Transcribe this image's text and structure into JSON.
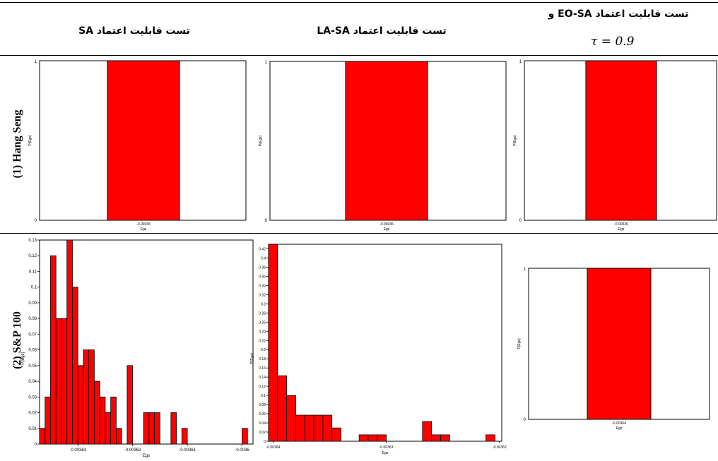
{
  "headers": {
    "col1": "تست قابلیت اعتماد SA",
    "col2": "تست قابلیت اعتماد LA-SA",
    "col3": "تست قابلیت اعتماد EO-SA و",
    "col3_tau": "τ = 0.9"
  },
  "rows": {
    "row1": "(1) Hang Seng",
    "row2": "(2) S&P 100"
  },
  "colors": {
    "bar": "#ff0000",
    "bar_edge": "#000000",
    "axis": "#000000"
  },
  "chart_data": [
    {
      "id": "hs-sa",
      "type": "bar",
      "categories": [
        "-0.00336"
      ],
      "values": [
        1
      ],
      "xlabel": "Egs",
      "ylabel": "P(Egs)",
      "ylim": [
        0,
        1
      ],
      "yticks": [
        "0",
        "1"
      ],
      "grid": false
    },
    {
      "id": "hs-lasa",
      "type": "bar",
      "categories": [
        "-0.00336"
      ],
      "values": [
        1
      ],
      "xlabel": "Egs",
      "ylabel": "P(Egs)",
      "ylim": [
        0,
        1
      ],
      "yticks": [
        "0",
        "1"
      ],
      "grid": false
    },
    {
      "id": "hs-eosa",
      "type": "bar",
      "categories": [
        "-0.00336"
      ],
      "values": [
        1
      ],
      "xlabel": "Egs",
      "ylabel": "P(Egs)",
      "ylim": [
        0,
        1
      ],
      "yticks": [
        "0",
        "1"
      ],
      "grid": false
    },
    {
      "id": "sp-sa",
      "type": "bar",
      "xlabel": "Egs",
      "ylabel": "P(Egs)",
      "xlim": [
        -0.003637,
        -0.003598
      ],
      "ylim": [
        0,
        0.13
      ],
      "bin_width": 1e-06,
      "xticks": [
        -0.00363,
        -0.00362,
        -0.00361,
        -0.0036
      ],
      "xticklabels": [
        "-0.00363",
        "-0.00362",
        "-0.00361",
        "-0.0036"
      ],
      "yticks": [
        "0",
        "0.01",
        "0.02",
        "0.03",
        "0.04",
        "0.05",
        "0.06",
        "0.07",
        "0.08",
        "0.09",
        "0.1",
        "0.11",
        "0.12",
        "0.13"
      ],
      "bins": [
        {
          "x": -0.0036365,
          "y": 0.01
        },
        {
          "x": -0.0036355,
          "y": 0.03
        },
        {
          "x": -0.0036345,
          "y": 0.12
        },
        {
          "x": -0.0036335,
          "y": 0.08
        },
        {
          "x": -0.0036325,
          "y": 0.08
        },
        {
          "x": -0.0036315,
          "y": 0.13
        },
        {
          "x": -0.0036305,
          "y": 0.1
        },
        {
          "x": -0.0036295,
          "y": 0.05
        },
        {
          "x": -0.0036285,
          "y": 0.06
        },
        {
          "x": -0.0036275,
          "y": 0.06
        },
        {
          "x": -0.0036265,
          "y": 0.04
        },
        {
          "x": -0.0036255,
          "y": 0.03
        },
        {
          "x": -0.0036245,
          "y": 0.02
        },
        {
          "x": -0.0036235,
          "y": 0.03
        },
        {
          "x": -0.0036225,
          "y": 0.01
        },
        {
          "x": -0.0036205,
          "y": 0.05
        },
        {
          "x": -0.0036175,
          "y": 0.02
        },
        {
          "x": -0.0036165,
          "y": 0.02
        },
        {
          "x": -0.0036155,
          "y": 0.02
        },
        {
          "x": -0.0036125,
          "y": 0.02
        },
        {
          "x": -0.0036105,
          "y": 0.01
        },
        {
          "x": -0.0035995,
          "y": 0.01
        }
      ]
    },
    {
      "id": "sp-lasa",
      "type": "bar",
      "xlabel": "Egs",
      "ylabel": "P(Egs)",
      "xlim": [
        -0.0036404,
        -0.0036198
      ],
      "ylim": [
        0,
        0.43
      ],
      "bin_width": 8e-07,
      "xticks": [
        -0.00364,
        -0.00363,
        -0.00362
      ],
      "xticklabels": [
        "-0.00364",
        "-0.00363",
        "-0.00362"
      ],
      "yticks": [
        "0",
        "0.02",
        "0.04",
        "0.06",
        "0.08",
        "0.1",
        "0.12",
        "0.14",
        "0.16",
        "0.18",
        "0.2",
        "0.22",
        "0.24",
        "0.26",
        "0.28",
        "0.3",
        "0.32",
        "0.34",
        "0.36",
        "0.38",
        "0.4",
        "0.42"
      ],
      "bins": [
        {
          "x": -0.00364,
          "y": 0.43
        },
        {
          "x": -0.0036392,
          "y": 0.143
        },
        {
          "x": -0.0036384,
          "y": 0.1
        },
        {
          "x": -0.0036376,
          "y": 0.057
        },
        {
          "x": -0.0036368,
          "y": 0.057
        },
        {
          "x": -0.003636,
          "y": 0.057
        },
        {
          "x": -0.0036352,
          "y": 0.057
        },
        {
          "x": -0.0036344,
          "y": 0.029
        },
        {
          "x": -0.003632,
          "y": 0.014
        },
        {
          "x": -0.0036312,
          "y": 0.014
        },
        {
          "x": -0.0036304,
          "y": 0.014
        },
        {
          "x": -0.0036264,
          "y": 0.043
        },
        {
          "x": -0.0036256,
          "y": 0.014
        },
        {
          "x": -0.0036248,
          "y": 0.014
        },
        {
          "x": -0.0036208,
          "y": 0.014
        }
      ]
    },
    {
      "id": "sp-eosa",
      "type": "bar",
      "categories": [
        "-0.00364"
      ],
      "values": [
        1
      ],
      "xlabel": "Egs",
      "ylabel": "P(Egs)",
      "ylim": [
        0,
        1
      ],
      "yticks": [
        "0",
        "1"
      ],
      "grid": false
    }
  ]
}
